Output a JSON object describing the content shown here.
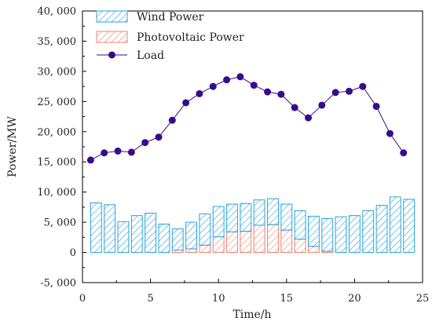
{
  "chart_data": {
    "type": "bar",
    "xlabel": "Time/h",
    "ylabel": "Power/MW",
    "xlim": [
      0,
      25
    ],
    "ylim": [
      -5000,
      40000
    ],
    "x_ticks": [
      "0",
      "5",
      "10",
      "15",
      "20",
      "25"
    ],
    "y_ticks": [
      "-5, 000",
      "0",
      "5, 000",
      "10, 000",
      "15, 000",
      "20, 000",
      "25, 000",
      "30, 000",
      "35, 000",
      "40, 000"
    ],
    "legend_position": "top-left",
    "hours": [
      1,
      2,
      3,
      4,
      5,
      6,
      7,
      8,
      9,
      10,
      11,
      12,
      13,
      14,
      15,
      16,
      17,
      18,
      19,
      20,
      21,
      22,
      23,
      24
    ],
    "series": [
      {
        "name": "Wind Power",
        "kind": "bar",
        "color": "#29a3e0",
        "values": [
          8200,
          7900,
          5100,
          6100,
          6500,
          4700,
          3500,
          4400,
          5200,
          5000,
          4600,
          4600,
          4200,
          4300,
          4300,
          4700,
          5000,
          5400,
          5900,
          6100,
          6900,
          7800,
          9200,
          8800
        ]
      },
      {
        "name": "Photovoltaic Power",
        "kind": "bar",
        "color": "#f08070",
        "values": [
          0,
          0,
          0,
          0,
          0,
          0,
          400,
          600,
          1200,
          2600,
          3400,
          3500,
          4500,
          4600,
          3700,
          2200,
          1000,
          200,
          0,
          0,
          0,
          0,
          0,
          0
        ]
      },
      {
        "name": "Load",
        "kind": "line",
        "color": "#3a0a8c",
        "points": [
          [
            0.6,
            15300
          ],
          [
            1.6,
            16500
          ],
          [
            2.6,
            16800
          ],
          [
            3.6,
            16600
          ],
          [
            4.6,
            18200
          ],
          [
            5.6,
            19100
          ],
          [
            6.6,
            21900
          ],
          [
            7.6,
            24800
          ],
          [
            8.6,
            26300
          ],
          [
            9.6,
            27500
          ],
          [
            10.6,
            28600
          ],
          [
            11.6,
            29100
          ],
          [
            12.6,
            27700
          ],
          [
            13.6,
            26600
          ],
          [
            14.6,
            26200
          ],
          [
            15.6,
            24000
          ],
          [
            16.6,
            22300
          ],
          [
            17.6,
            24400
          ],
          [
            18.6,
            26500
          ],
          [
            19.6,
            26700
          ],
          [
            20.6,
            27500
          ],
          [
            21.6,
            24200
          ],
          [
            22.6,
            19700
          ],
          [
            23.6,
            16500
          ]
        ]
      }
    ]
  }
}
